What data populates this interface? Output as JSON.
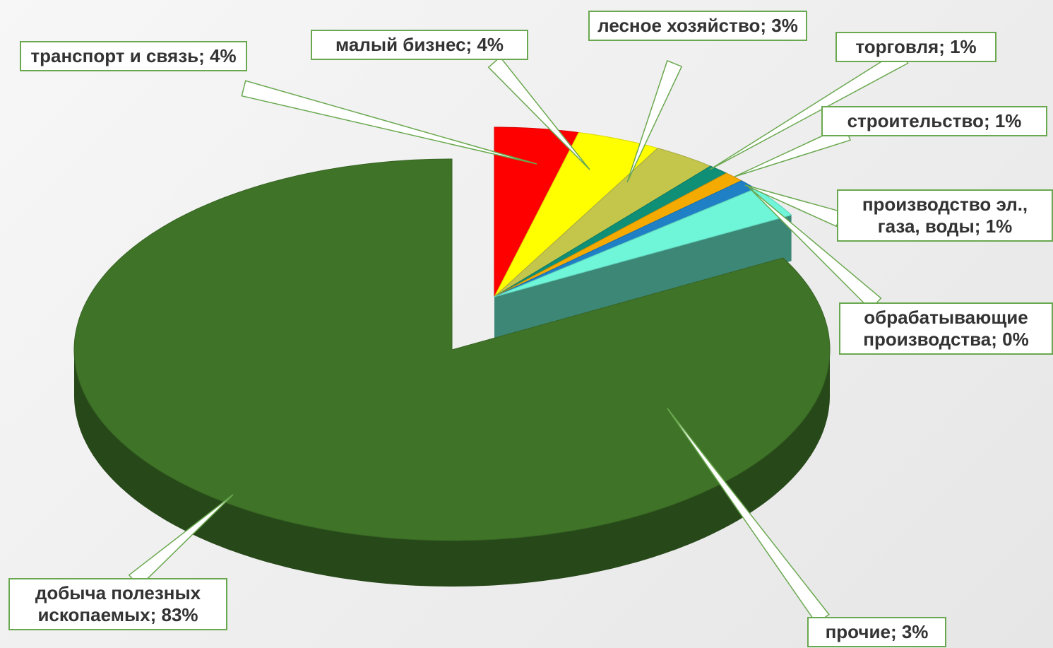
{
  "chart_data": {
    "type": "pie",
    "categories": [
      "транспорт и связь",
      "малый бизнес",
      "лесное хозяйство",
      "торговля",
      "строительство",
      "производство эл., газа, воды",
      "обрабатывающие производства",
      "прочие",
      "добыча полезных ископаемых"
    ],
    "values": [
      4,
      4,
      3,
      1,
      1,
      1,
      0,
      3,
      83
    ],
    "value_labels": [
      "4%",
      "4%",
      "3%",
      "1%",
      "1%",
      "1%",
      "0%",
      "3%",
      "83%"
    ],
    "label_separator": "; ",
    "colors": [
      "#ff0000",
      "#ffff00",
      "#c4c64c",
      "#0f8f76",
      "#f5aa00",
      "#1f80c6",
      "#8ff0e0",
      "#6ff5d8",
      "#3f7428"
    ]
  }
}
